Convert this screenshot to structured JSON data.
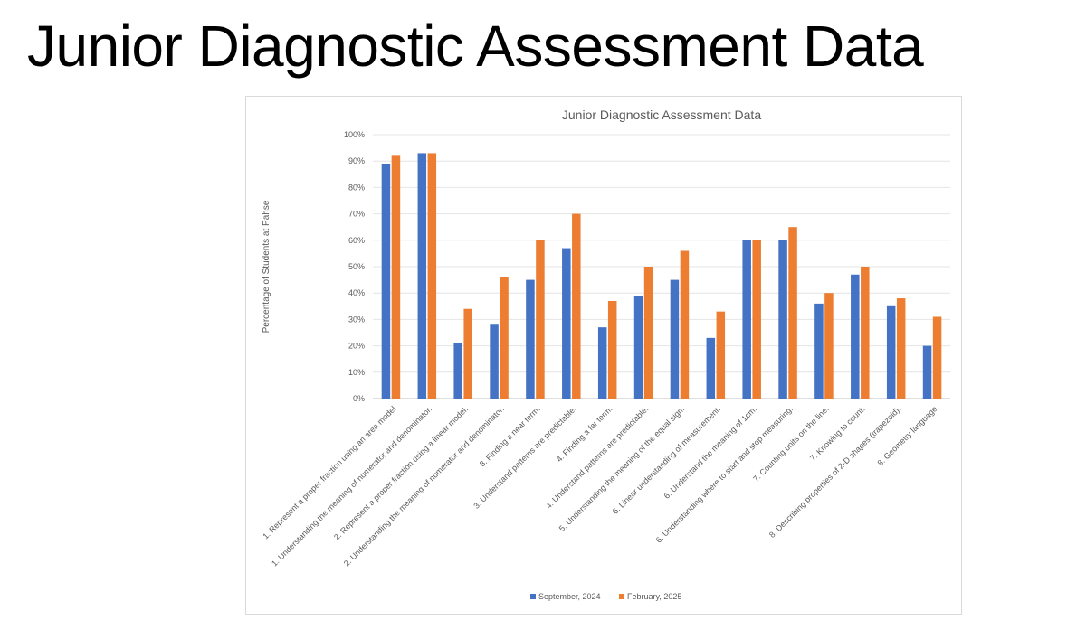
{
  "slide": {
    "title": "Junior Diagnostic Assessment Data"
  },
  "chart_data": {
    "type": "bar",
    "title": "Junior Diagnostic Assessment Data",
    "xlabel": "",
    "ylabel": "Percentage of Students at Pahse",
    "ylim": [
      0,
      100
    ],
    "yticks": [
      "0%",
      "10%",
      "20%",
      "30%",
      "40%",
      "50%",
      "60%",
      "70%",
      "80%",
      "90%",
      "100%"
    ],
    "grid": true,
    "legend_position": "bottom",
    "categories": [
      "1. Represent a proper fraction using an area model",
      "1. Understanding the meaning of numerator and denominator.",
      "2. Represent a proper fraction using a linear model.",
      "2. Understanding the meaning of numerator and denominator.",
      "3. Finding a near term.",
      "3. Understand patterns are predictable.",
      "4. Finding a far term.",
      "4. Understand patterns are predictable.",
      "5. Understanding the meaning of the equal sign.",
      "6. Linear understanding of measurement.",
      "6. Understand the meaning of 1cm.",
      "6. Understanding where to start and stop measuring.",
      "7. Counting units on the line.",
      "7. Knowing to count.",
      "8. Describing properties of 2-D shapes (trapezoid).",
      "8. Geometry language"
    ],
    "series": [
      {
        "name": "September, 2024",
        "color": "#4472c4",
        "values": [
          89,
          93,
          21,
          28,
          45,
          57,
          27,
          39,
          45,
          23,
          60,
          60,
          36,
          47,
          35,
          20
        ]
      },
      {
        "name": "February, 2025",
        "color": "#ed7d31",
        "values": [
          92,
          93,
          34,
          46,
          60,
          70,
          37,
          50,
          56,
          33,
          60,
          65,
          40,
          50,
          38,
          31
        ]
      }
    ]
  }
}
